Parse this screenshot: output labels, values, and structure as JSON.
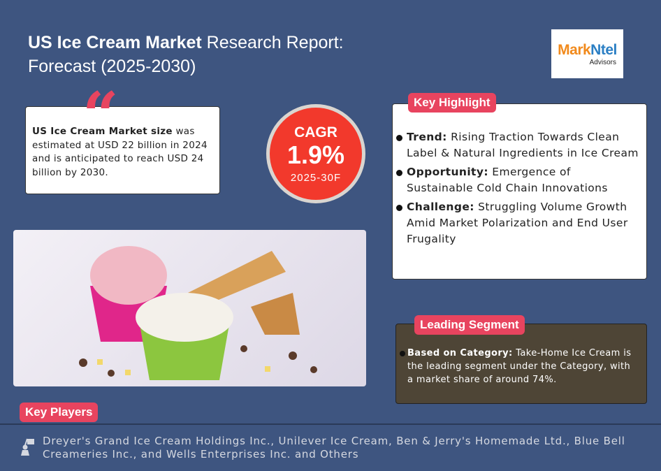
{
  "title": {
    "bold": "US Ice Cream Market",
    "rest": " Research Report:",
    "line2": "Forecast (2025-2030)"
  },
  "logo": {
    "part1": "Mark",
    "part2": "Ntel",
    "sub": "Advisors"
  },
  "market_size": {
    "bold": "US Ice Cream Market size",
    "text": " was estimated at USD 22 billion in 2024 and is anticipated to reach USD 24 billion by 2030."
  },
  "cagr": {
    "label": "CAGR",
    "value": "1.9%",
    "period": "2025-30F"
  },
  "key_highlight": {
    "label": "Key Highlight",
    "items": [
      {
        "bold": "Trend:",
        "text": " Rising Traction Towards Clean Label & Natural Ingredients in Ice Cream"
      },
      {
        "bold": "Opportunity:",
        "text": " Emergence of Sustainable Cold Chain Innovations"
      },
      {
        "bold": "Challenge:",
        "text": " Struggling Volume Growth Amid Market Polarization and End User Frugality"
      }
    ]
  },
  "leading_segment": {
    "label": "Leading Segment",
    "bold": "Based on Category:",
    "text": " Take-Home Ice Cream is the leading segment under the Category, with a market share of around 74%."
  },
  "key_players": {
    "label": "Key Players",
    "text": "Dreyer's Grand Ice Cream Holdings Inc., Unilever Ice Cream, Ben & Jerry's Homemade Ltd., Blue Bell Creameries Inc., and Wells Enterprises Inc. and Others"
  },
  "colors": {
    "background": "#3e5580",
    "accent": "#e8445f",
    "cagr": "#f2392c",
    "segment_box": "#4e4536"
  }
}
